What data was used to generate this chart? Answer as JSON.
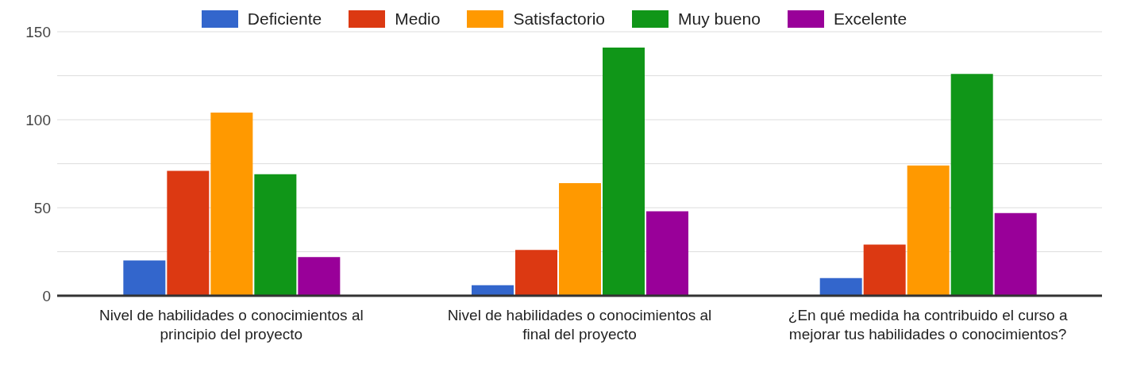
{
  "chart_data": {
    "type": "bar",
    "categories": [
      "Nivel de habilidades o conocimientos al principio del proyecto",
      "Nivel de habilidades o conocimientos al final del proyecto",
      "¿En qué medida ha contribuido el curso a mejorar tus habilidades o conocimientos?"
    ],
    "series": [
      {
        "name": "Deficiente",
        "color": "#3366cc",
        "values": [
          20,
          6,
          10
        ]
      },
      {
        "name": "Medio",
        "color": "#dc3912",
        "values": [
          71,
          26,
          29
        ]
      },
      {
        "name": "Satisfactorio",
        "color": "#ff9900",
        "values": [
          104,
          64,
          74
        ]
      },
      {
        "name": "Muy bueno",
        "color": "#109618",
        "values": [
          69,
          141,
          126
        ]
      },
      {
        "name": "Excelente",
        "color": "#990099",
        "values": [
          22,
          48,
          47
        ]
      }
    ],
    "ylim": [
      0,
      150
    ],
    "yticks": [
      0,
      {
        "value": 25,
        "label": null
      },
      50,
      {
        "value": 75,
        "label": null
      },
      100,
      {
        "value": 125,
        "label": null
      },
      150
    ],
    "grid": "y",
    "legend": "top"
  }
}
